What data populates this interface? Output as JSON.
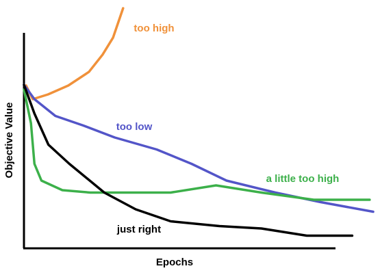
{
  "chart_data": {
    "type": "line",
    "x_label": "Epochs",
    "y_label": "Objective Value",
    "xlim": [
      0,
      100
    ],
    "ylim": [
      0,
      100
    ],
    "series": [
      {
        "name": "too high",
        "color": "#f0913a",
        "x": [
          0.6,
          2.5,
          6.9,
          12.7,
          18.6,
          22.5,
          25.5,
          28.4
        ],
        "values": [
          67.7,
          62,
          64,
          67.7,
          73.4,
          80.6,
          87.7,
          100
        ]
      },
      {
        "name": "too low",
        "color": "#5355c8",
        "x": [
          0,
          3,
          9,
          17,
          26,
          38,
          48,
          58,
          72,
          85,
          100
        ],
        "values": [
          68,
          62,
          55,
          51,
          46,
          41,
          35,
          28,
          23,
          19,
          15
        ]
      },
      {
        "name": "a little too high",
        "color": "#3cb04a",
        "x": [
          0,
          2,
          3,
          5,
          11,
          19,
          32,
          42,
          55,
          68,
          83,
          99
        ],
        "values": [
          66,
          52,
          35,
          28,
          24,
          23,
          23,
          23,
          26,
          23,
          20,
          20
        ]
      },
      {
        "name": "just right",
        "color": "#000000",
        "x": [
          0,
          3,
          7,
          13,
          23,
          32,
          42,
          56,
          68,
          81,
          94
        ],
        "values": [
          68,
          56,
          43,
          35,
          23,
          16,
          11,
          9,
          8,
          5,
          5
        ]
      }
    ]
  }
}
